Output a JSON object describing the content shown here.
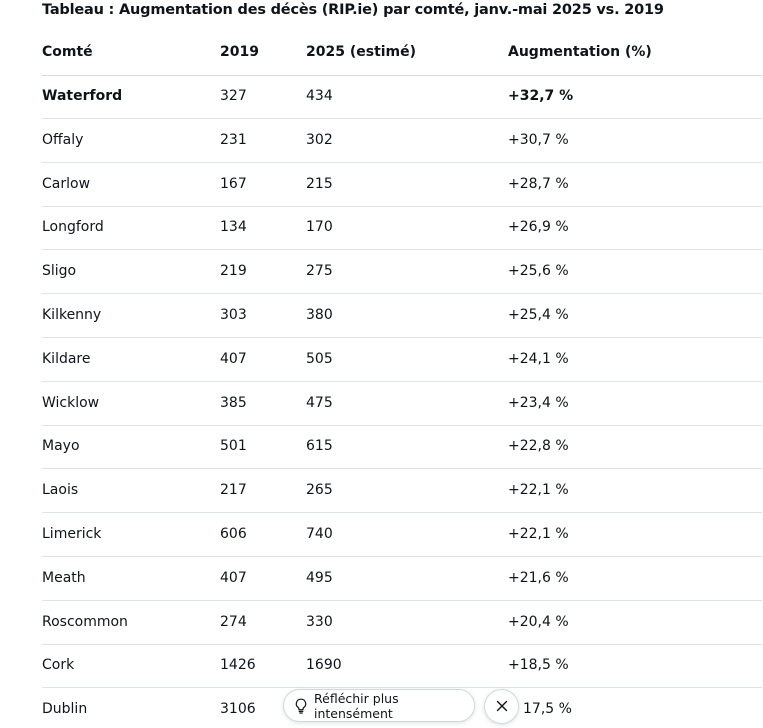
{
  "title": "Tableau : Augmentation des décès (RIP.ie) par comté, janv.-mai 2025 vs. 2019",
  "table": {
    "headers": [
      "Comté",
      "2019",
      "2025 (estimé)",
      "Augmentation (%)"
    ],
    "rows": [
      {
        "county": "Waterford",
        "y2019": "327",
        "y2025": "434",
        "increase": "+32,7 %",
        "bold": true
      },
      {
        "county": "Offaly",
        "y2019": "231",
        "y2025": "302",
        "increase": "+30,7 %"
      },
      {
        "county": "Carlow",
        "y2019": "167",
        "y2025": "215",
        "increase": "+28,7 %"
      },
      {
        "county": "Longford",
        "y2019": "134",
        "y2025": "170",
        "increase": "+26,9 %"
      },
      {
        "county": "Sligo",
        "y2019": "219",
        "y2025": "275",
        "increase": "+25,6 %"
      },
      {
        "county": "Kilkenny",
        "y2019": "303",
        "y2025": "380",
        "increase": "+25,4 %"
      },
      {
        "county": "Kildare",
        "y2019": "407",
        "y2025": "505",
        "increase": "+24,1 %"
      },
      {
        "county": "Wicklow",
        "y2019": "385",
        "y2025": "475",
        "increase": "+23,4 %"
      },
      {
        "county": "Mayo",
        "y2019": "501",
        "y2025": "615",
        "increase": "+22,8 %"
      },
      {
        "county": "Laois",
        "y2019": "217",
        "y2025": "265",
        "increase": "+22,1 %"
      },
      {
        "county": "Limerick",
        "y2019": "606",
        "y2025": "740",
        "increase": "+22,1 %"
      },
      {
        "county": "Meath",
        "y2019": "407",
        "y2025": "495",
        "increase": "+21,6 %"
      },
      {
        "county": "Roscommon",
        "y2019": "274",
        "y2025": "330",
        "increase": "+20,4 %"
      },
      {
        "county": "Cork",
        "y2019": "1426",
        "y2025": "1690",
        "increase": "+18,5 %"
      },
      {
        "county": "Dublin",
        "y2019": "3106",
        "y2025": "",
        "increase": "17,5 %"
      }
    ]
  },
  "think_harder_button": {
    "label": "Réfléchir plus intensément",
    "icon": "lightbulb-icon"
  },
  "close_button": {
    "icon": "close-icon"
  }
}
